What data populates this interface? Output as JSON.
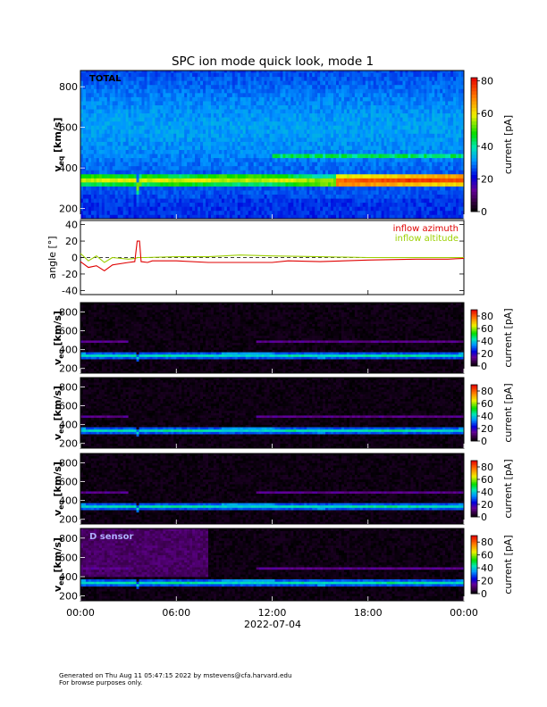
{
  "title": "SPC ion mode quick look, mode 1",
  "footer": {
    "line1": "Generated on Thu Aug 11 05:47:15 2022 by mstevens@cfa.harvard.edu",
    "line2": "For browse purposes only."
  },
  "colors": {
    "inflow_azimuth": "#e00000",
    "inflow_altitude": "#9cd000"
  },
  "chart_data": [
    {
      "type": "heatmap",
      "panel_label": "TOTAL",
      "ylabel_main": "v",
      "ylabel_sub": "eq",
      "ylabel_unit": " [km/s]",
      "yticks": [
        200,
        400,
        600,
        800
      ],
      "ylim": [
        150,
        880
      ],
      "colorbar": {
        "label": "current [pA]",
        "ticks": [
          0,
          20,
          40,
          60,
          80
        ],
        "range": [
          0,
          82
        ]
      },
      "core_speed_kms": [
        [
          0,
          345
        ],
        [
          3.5,
          340
        ],
        [
          3.6,
          300
        ],
        [
          3.8,
          345
        ],
        [
          6,
          335
        ],
        [
          9,
          345
        ],
        [
          12,
          345
        ],
        [
          15,
          330
        ],
        [
          18,
          335
        ],
        [
          24,
          345
        ]
      ],
      "core_current_pa": [
        [
          0,
          55
        ],
        [
          12,
          50
        ],
        [
          15,
          55
        ],
        [
          16,
          75
        ],
        [
          24,
          80
        ]
      ]
    },
    {
      "type": "line",
      "ylabel": "angle [°]",
      "yticks": [
        -40,
        -20,
        0,
        20,
        40
      ],
      "ylim": [
        -45,
        45
      ],
      "series": [
        {
          "name": "inflow azimuth",
          "points": [
            [
              0,
              -5
            ],
            [
              0.5,
              -12
            ],
            [
              1,
              -10
            ],
            [
              1.5,
              -16
            ],
            [
              2,
              -9
            ],
            [
              3,
              -6
            ],
            [
              3.4,
              -5
            ],
            [
              3.55,
              20
            ],
            [
              3.7,
              20
            ],
            [
              3.8,
              -5
            ],
            [
              4.2,
              -6
            ],
            [
              4.5,
              -4
            ],
            [
              6,
              -4
            ],
            [
              8,
              -6
            ],
            [
              10,
              -6
            ],
            [
              12,
              -6
            ],
            [
              13,
              -4
            ],
            [
              15,
              -5
            ],
            [
              18,
              -3
            ],
            [
              21,
              -2
            ],
            [
              23,
              -2
            ],
            [
              24,
              -1
            ]
          ]
        },
        {
          "name": "inflow altitude",
          "points": [
            [
              0,
              5
            ],
            [
              0.5,
              -4
            ],
            [
              1,
              2
            ],
            [
              1.5,
              -6
            ],
            [
              2,
              0
            ],
            [
              3,
              -2
            ],
            [
              3.4,
              -1
            ],
            [
              3.6,
              0
            ],
            [
              4,
              0
            ],
            [
              6,
              1
            ],
            [
              8,
              1
            ],
            [
              10,
              3
            ],
            [
              12,
              2
            ],
            [
              15,
              1
            ],
            [
              18,
              0
            ],
            [
              21,
              0
            ],
            [
              24,
              0
            ]
          ]
        }
      ]
    },
    {
      "type": "heatmap",
      "panel_label": "",
      "ylabel_main": "v",
      "ylabel_sub": "eq",
      "ylabel_unit": " [km/s]",
      "yticks": [
        200,
        400,
        600,
        800
      ],
      "ylim": [
        150,
        900
      ],
      "colorbar": {
        "label": "current [pA]",
        "ticks": [
          0,
          20,
          40,
          60,
          80
        ],
        "range": [
          0,
          90
        ]
      }
    },
    {
      "type": "heatmap",
      "panel_label": "",
      "ylabel_main": "v",
      "ylabel_sub": "eq",
      "ylabel_unit": " [km/s]",
      "yticks": [
        200,
        400,
        600,
        800
      ],
      "ylim": [
        150,
        900
      ],
      "colorbar": {
        "label": "current [pA]",
        "ticks": [
          0,
          20,
          40,
          60,
          80
        ],
        "range": [
          0,
          90
        ]
      }
    },
    {
      "type": "heatmap",
      "panel_label": "",
      "ylabel_main": "v",
      "ylabel_sub": "eq",
      "ylabel_unit": " [km/s]",
      "yticks": [
        200,
        400,
        600,
        800
      ],
      "ylim": [
        150,
        900
      ],
      "colorbar": {
        "label": "current [pA]",
        "ticks": [
          0,
          20,
          40,
          60,
          80
        ],
        "range": [
          0,
          90
        ]
      }
    },
    {
      "type": "heatmap",
      "panel_label": "D sensor",
      "ylabel_main": "v",
      "ylabel_sub": "eq",
      "ylabel_unit": " [km/s]",
      "yticks": [
        200,
        400,
        600,
        800
      ],
      "ylim": [
        150,
        900
      ],
      "colorbar": {
        "label": "current [pA]",
        "ticks": [
          0,
          20,
          40,
          60,
          80
        ],
        "range": [
          0,
          90
        ]
      }
    }
  ],
  "xaxis": {
    "ticks": [
      "00:00",
      "06:00",
      "12:00",
      "18:00",
      "00:00"
    ],
    "xlim_hours": [
      0,
      24
    ],
    "date": "2022-07-04"
  }
}
